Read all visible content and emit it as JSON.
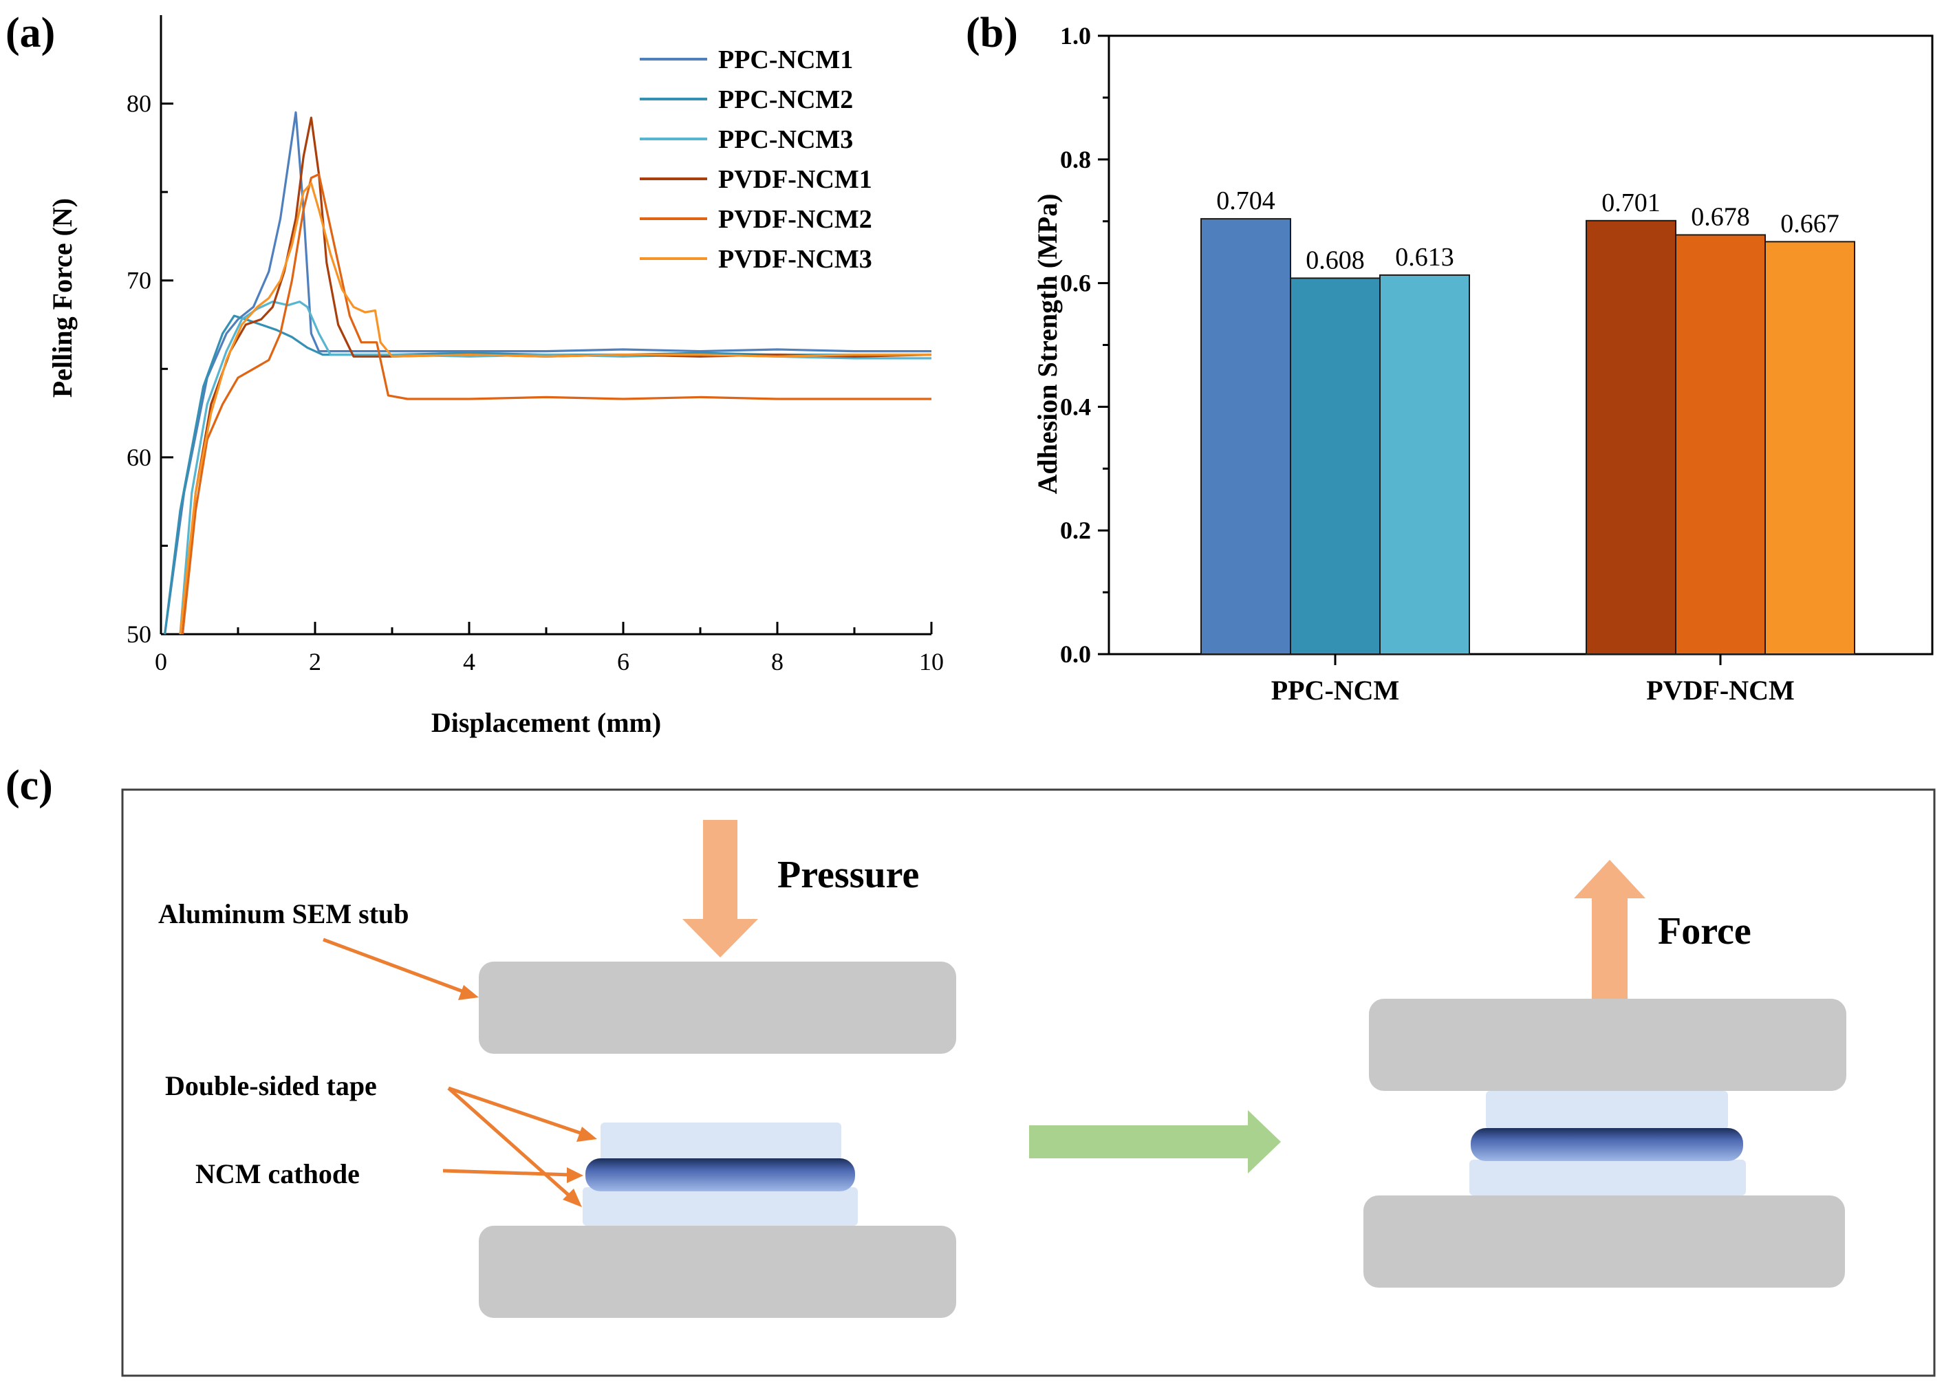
{
  "panels": {
    "a": "(a)",
    "b": "(b)",
    "c": "(c)"
  },
  "colors": {
    "PPC-NCM1": "#4f80bd",
    "PPC-NCM2": "#3591b4",
    "PPC-NCM3": "#58b5d0",
    "PVDF-NCM1": "#a93f0d",
    "PVDF-NCM2": "#df6515",
    "PVDF-NCM3": "#f79428",
    "stub": "#c8c8c8",
    "tape": "#dae5f6",
    "cathode": "#7f9bd6",
    "pressure_arrow": "#f6b183",
    "transition_arrow": "#a9d28e",
    "pointer": "#ec7e32"
  },
  "chart_data": [
    {
      "type": "line",
      "xlabel": "Displacement (mm)",
      "ylabel": "Pelling Force (N)",
      "xlim": [
        0,
        10
      ],
      "ylim": [
        50,
        85
      ],
      "xticks": [
        0,
        2,
        4,
        6,
        8,
        10
      ],
      "yticks": [
        50,
        60,
        70,
        80
      ],
      "legend_position": "top-right",
      "series": [
        {
          "name": "PPC-NCM1",
          "color": "#4f80bd",
          "points": [
            [
              0.05,
              50
            ],
            [
              0.3,
              58
            ],
            [
              0.6,
              64.5
            ],
            [
              0.85,
              67
            ],
            [
              1.0,
              67.8
            ],
            [
              1.2,
              68.5
            ],
            [
              1.4,
              70.5
            ],
            [
              1.55,
              73.5
            ],
            [
              1.65,
              76.5
            ],
            [
              1.75,
              79.5
            ],
            [
              1.85,
              74
            ],
            [
              1.95,
              67
            ],
            [
              2.05,
              66
            ],
            [
              3,
              66
            ],
            [
              4,
              66
            ],
            [
              5,
              66
            ],
            [
              6,
              66.1
            ],
            [
              7,
              66
            ],
            [
              8,
              66.1
            ],
            [
              9,
              66
            ],
            [
              10,
              66
            ]
          ]
        },
        {
          "name": "PPC-NCM2",
          "color": "#3591b4",
          "points": [
            [
              0.05,
              50
            ],
            [
              0.25,
              57
            ],
            [
              0.55,
              64
            ],
            [
              0.8,
              67
            ],
            [
              0.95,
              68
            ],
            [
              1.1,
              67.8
            ],
            [
              1.3,
              67.5
            ],
            [
              1.5,
              67.2
            ],
            [
              1.7,
              66.8
            ],
            [
              1.9,
              66.2
            ],
            [
              2.1,
              65.8
            ],
            [
              3,
              65.8
            ],
            [
              4,
              65.9
            ],
            [
              5,
              65.8
            ],
            [
              6,
              65.8
            ],
            [
              7,
              65.9
            ],
            [
              8,
              65.8
            ],
            [
              9,
              65.8
            ],
            [
              10,
              65.8
            ]
          ]
        },
        {
          "name": "PPC-NCM3",
          "color": "#58b5d0",
          "points": [
            [
              0.25,
              50
            ],
            [
              0.4,
              58
            ],
            [
              0.6,
              63
            ],
            [
              0.85,
              66
            ],
            [
              1.05,
              67.8
            ],
            [
              1.25,
              68.4
            ],
            [
              1.45,
              68.8
            ],
            [
              1.65,
              68.6
            ],
            [
              1.8,
              68.8
            ],
            [
              1.9,
              68.5
            ],
            [
              2.05,
              67
            ],
            [
              2.2,
              65.8
            ],
            [
              3,
              65.8
            ],
            [
              4,
              65.7
            ],
            [
              5,
              65.8
            ],
            [
              6,
              65.7
            ],
            [
              7,
              65.8
            ],
            [
              8,
              65.7
            ],
            [
              9,
              65.6
            ],
            [
              10,
              65.6
            ]
          ]
        },
        {
          "name": "PVDF-NCM1",
          "color": "#a93f0d",
          "points": [
            [
              0.28,
              50
            ],
            [
              0.45,
              58
            ],
            [
              0.65,
              63
            ],
            [
              0.9,
              66
            ],
            [
              1.1,
              67.5
            ],
            [
              1.3,
              67.8
            ],
            [
              1.45,
              68.5
            ],
            [
              1.6,
              70.5
            ],
            [
              1.75,
              73.5
            ],
            [
              1.85,
              77
            ],
            [
              1.95,
              79.2
            ],
            [
              2.05,
              76
            ],
            [
              2.15,
              71
            ],
            [
              2.3,
              67.5
            ],
            [
              2.5,
              65.7
            ],
            [
              3,
              65.7
            ],
            [
              4,
              65.8
            ],
            [
              5,
              65.7
            ],
            [
              6,
              65.8
            ],
            [
              7,
              65.7
            ],
            [
              8,
              65.8
            ],
            [
              9,
              65.7
            ],
            [
              10,
              65.8
            ]
          ]
        },
        {
          "name": "PVDF-NCM2",
          "color": "#df6515",
          "points": [
            [
              0.28,
              50
            ],
            [
              0.45,
              57
            ],
            [
              0.6,
              61
            ],
            [
              0.8,
              63
            ],
            [
              1.0,
              64.5
            ],
            [
              1.2,
              65
            ],
            [
              1.4,
              65.5
            ],
            [
              1.55,
              67
            ],
            [
              1.7,
              70
            ],
            [
              1.85,
              74
            ],
            [
              1.95,
              75.8
            ],
            [
              2.05,
              76
            ],
            [
              2.15,
              74
            ],
            [
              2.3,
              71
            ],
            [
              2.45,
              68
            ],
            [
              2.6,
              66.5
            ],
            [
              2.8,
              66.5
            ],
            [
              2.95,
              63.5
            ],
            [
              3.2,
              63.3
            ],
            [
              4,
              63.3
            ],
            [
              5,
              63.4
            ],
            [
              6,
              63.3
            ],
            [
              7,
              63.4
            ],
            [
              8,
              63.3
            ],
            [
              9,
              63.3
            ],
            [
              10,
              63.3
            ]
          ]
        },
        {
          "name": "PVDF-NCM3",
          "color": "#f79428",
          "points": [
            [
              0.25,
              50
            ],
            [
              0.45,
              58
            ],
            [
              0.65,
              62.5
            ],
            [
              0.85,
              65.5
            ],
            [
              1.05,
              67.5
            ],
            [
              1.25,
              68.5
            ],
            [
              1.4,
              69
            ],
            [
              1.55,
              70
            ],
            [
              1.7,
              72
            ],
            [
              1.85,
              75
            ],
            [
              1.95,
              75.5
            ],
            [
              2.05,
              74
            ],
            [
              2.2,
              71.5
            ],
            [
              2.35,
              69.5
            ],
            [
              2.5,
              68.5
            ],
            [
              2.65,
              68.2
            ],
            [
              2.78,
              68.3
            ],
            [
              2.85,
              66.5
            ],
            [
              3,
              65.7
            ],
            [
              4,
              65.8
            ],
            [
              5,
              65.7
            ],
            [
              6,
              65.8
            ],
            [
              7,
              65.8
            ],
            [
              8,
              65.7
            ],
            [
              9,
              65.8
            ],
            [
              10,
              65.8
            ]
          ]
        }
      ]
    },
    {
      "type": "bar",
      "ylabel": "Adhesion Strength (MPa)",
      "ylim": [
        0,
        1.0
      ],
      "yticks": [
        "0.0",
        "0.2",
        "0.4",
        "0.6",
        "0.8",
        "1.0"
      ],
      "groups": [
        {
          "name": "PPC-NCM",
          "bars": [
            {
              "series": "PPC-NCM1",
              "value": 0.704,
              "label": "0.704",
              "color": "#4f80bd"
            },
            {
              "series": "PPC-NCM2",
              "value": 0.608,
              "label": "0.608",
              "color": "#3591b4"
            },
            {
              "series": "PPC-NCM3",
              "value": 0.613,
              "label": "0.613",
              "color": "#58b5d0"
            }
          ]
        },
        {
          "name": "PVDF-NCM",
          "bars": [
            {
              "series": "PVDF-NCM1",
              "value": 0.701,
              "label": "0.701",
              "color": "#a93f0d"
            },
            {
              "series": "PVDF-NCM2",
              "value": 0.678,
              "label": "0.678",
              "color": "#df6515"
            },
            {
              "series": "PVDF-NCM3",
              "value": 0.667,
              "label": "0.667",
              "color": "#f79428"
            }
          ]
        }
      ]
    }
  ],
  "diagram": {
    "aluminum_label": "Aluminum SEM stub",
    "tape_label": "Double-sided tape",
    "cathode_label": "NCM cathode",
    "pressure_label": "Pressure",
    "force_label": "Force"
  }
}
